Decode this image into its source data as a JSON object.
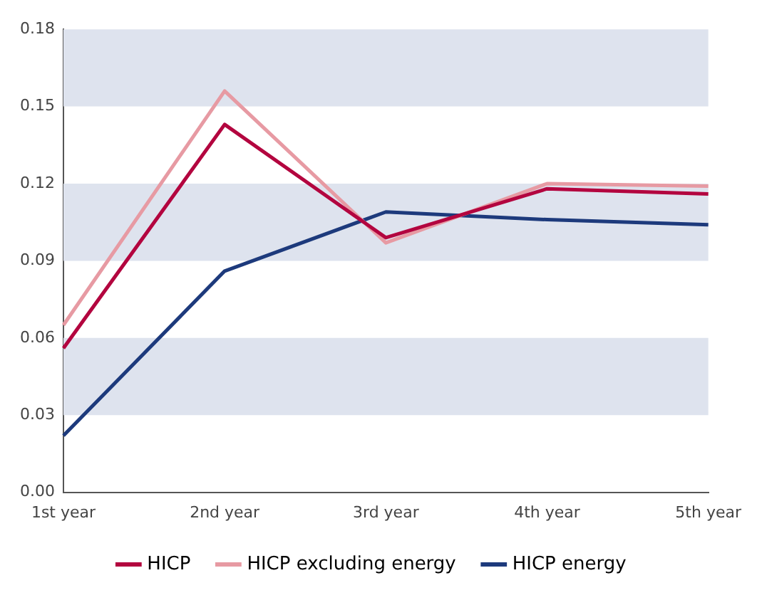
{
  "chart_data": {
    "type": "line",
    "categories": [
      "1st year",
      "2nd year",
      "3rd year",
      "4th year",
      "5th year"
    ],
    "series": [
      {
        "name": "HICP",
        "color": "#b3053f",
        "values": [
          0.056,
          0.143,
          0.099,
          0.118,
          0.116
        ]
      },
      {
        "name": "HICP excluding energy",
        "color": "#e79aa3",
        "values": [
          0.065,
          0.156,
          0.097,
          0.12,
          0.119
        ]
      },
      {
        "name": "HICP energy",
        "color": "#1d3a7c",
        "values": [
          0.022,
          0.086,
          0.109,
          0.106,
          0.104
        ]
      }
    ],
    "ylim": [
      0,
      0.18
    ],
    "yticks": [
      {
        "value": 0,
        "label": "0.00"
      },
      {
        "value": 0.03,
        "label": "0.03"
      },
      {
        "value": 0.06,
        "label": "0.06"
      },
      {
        "value": 0.09,
        "label": "0.09"
      },
      {
        "value": 0.12,
        "label": "0.12"
      },
      {
        "value": 0.15,
        "label": "0.15"
      },
      {
        "value": 0.18,
        "label": "0.18"
      }
    ],
    "bands": [
      {
        "axis": "y",
        "from": 0.03,
        "to": 0.06,
        "color": "#dee3ee"
      },
      {
        "axis": "y",
        "from": 0.09,
        "to": 0.12,
        "color": "#dee3ee"
      },
      {
        "axis": "y",
        "from": 0.15,
        "to": 0.18,
        "color": "#dee3ee"
      }
    ],
    "grid": false,
    "legend": "bottom",
    "marker": "none",
    "line_style": "solid"
  }
}
